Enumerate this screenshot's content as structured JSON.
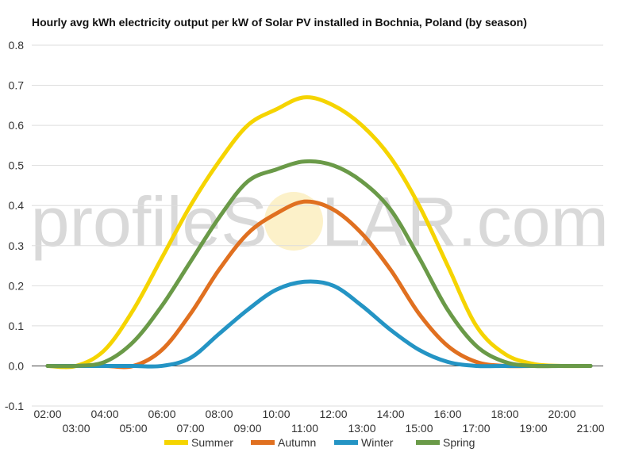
{
  "chart_data": {
    "type": "line",
    "title": "Hourly avg kWh electricity output per kW of Solar PV installed in Bochnia, Poland (by season)",
    "xlabel": "",
    "ylabel": "",
    "watermark": {
      "left": "profileS",
      "right": "LAR.com"
    },
    "y_ticks": [
      "0.8",
      "0.7",
      "0.6",
      "0.5",
      "0.4",
      "0.3",
      "0.2",
      "0.1",
      "0.0",
      "-0.1"
    ],
    "ylim": [
      -0.1,
      0.8
    ],
    "grid": true,
    "legend_position": "bottom",
    "x": [
      "02:00",
      "03:00",
      "04:00",
      "05:00",
      "06:00",
      "07:00",
      "08:00",
      "09:00",
      "10:00",
      "11:00",
      "12:00",
      "13:00",
      "14:00",
      "15:00",
      "16:00",
      "17:00",
      "18:00",
      "19:00",
      "20:00",
      "21:00"
    ],
    "series": [
      {
        "name": "Summer",
        "color": "#f5d400",
        "values": [
          0.0,
          0.0,
          0.04,
          0.14,
          0.27,
          0.4,
          0.51,
          0.6,
          0.64,
          0.67,
          0.65,
          0.6,
          0.52,
          0.4,
          0.25,
          0.1,
          0.03,
          0.005,
          0.0,
          0.0
        ]
      },
      {
        "name": "Autumn",
        "color": "#e07020",
        "values": [
          0.0,
          0.0,
          0.0,
          0.0,
          0.04,
          0.13,
          0.24,
          0.33,
          0.38,
          0.41,
          0.39,
          0.33,
          0.24,
          0.13,
          0.05,
          0.01,
          0.0,
          0.0,
          0.0,
          0.0
        ]
      },
      {
        "name": "Winter",
        "color": "#2494c4",
        "values": [
          0.0,
          0.0,
          0.0,
          0.0,
          0.0,
          0.02,
          0.08,
          0.14,
          0.19,
          0.21,
          0.2,
          0.15,
          0.09,
          0.04,
          0.01,
          0.0,
          0.0,
          0.0,
          0.0,
          0.0
        ]
      },
      {
        "name": "Spring",
        "color": "#6a9a48",
        "values": [
          0.0,
          0.0,
          0.01,
          0.06,
          0.15,
          0.26,
          0.37,
          0.46,
          0.49,
          0.51,
          0.5,
          0.46,
          0.39,
          0.27,
          0.14,
          0.05,
          0.01,
          0.0,
          0.0,
          0.0
        ]
      }
    ]
  }
}
